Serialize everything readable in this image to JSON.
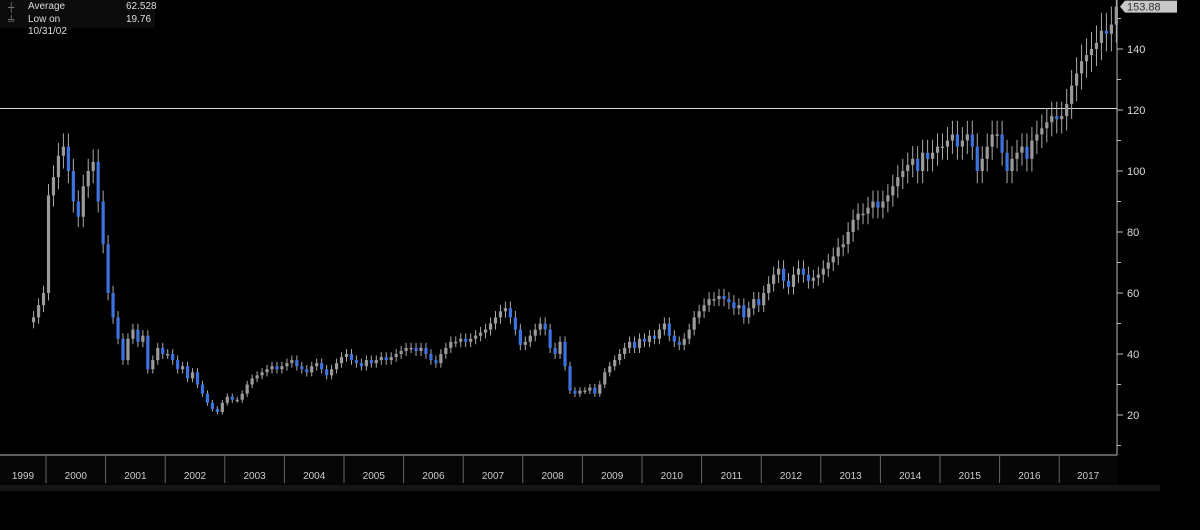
{
  "legend": {
    "average_label": "Average",
    "average_value": "62.528",
    "low_label": "Low on 10/31/02",
    "low_value": "19.76"
  },
  "last_price_label": "153.88",
  "colors": {
    "up": "#9a9a9a",
    "down": "#3b73e0",
    "axis": "#bbbbbb",
    "hline": "#d8d8d8",
    "background": "#000000"
  },
  "chart_data": {
    "type": "candlestick",
    "frequency": "monthly",
    "start": "1999-10",
    "close": [
      52,
      56,
      60,
      92,
      98,
      105,
      108,
      100,
      90,
      85,
      95,
      100,
      103,
      90,
      76,
      60,
      52,
      45,
      38,
      45,
      48,
      44,
      46,
      35,
      38,
      42,
      40,
      40,
      38,
      35,
      36,
      32,
      34,
      30,
      27,
      24,
      22,
      21,
      24,
      26,
      25,
      25,
      27,
      30,
      32,
      33,
      34,
      35,
      36,
      35,
      36,
      37,
      38,
      36,
      35,
      34,
      36,
      37,
      35,
      33,
      35,
      37,
      39,
      40,
      38,
      37,
      36,
      38,
      37,
      38,
      39,
      38,
      39,
      40,
      41,
      42,
      42,
      41,
      42,
      40,
      38,
      37,
      40,
      42,
      44,
      44,
      45,
      44,
      45,
      46,
      47,
      48,
      50,
      52,
      54,
      55,
      52,
      48,
      43,
      44,
      46,
      48,
      50,
      48,
      42,
      40,
      44,
      36,
      28,
      27,
      28,
      28,
      29,
      27,
      30,
      34,
      36,
      38,
      40,
      42,
      44,
      42,
      45,
      44,
      46,
      45,
      48,
      50,
      46,
      44,
      43,
      45,
      48,
      52,
      54,
      56,
      58,
      58,
      59,
      58,
      57,
      55,
      56,
      52,
      55,
      58,
      56,
      60,
      63,
      66,
      68,
      64,
      62,
      66,
      68,
      66,
      64,
      65,
      66,
      68,
      70,
      72,
      75,
      76,
      80,
      84,
      86,
      86,
      88,
      90,
      88,
      90,
      92,
      95,
      98,
      100,
      102,
      104,
      100,
      106,
      104,
      106,
      108,
      108,
      110,
      112,
      108,
      110,
      112,
      108,
      100,
      104,
      108,
      112,
      112,
      106,
      100,
      104,
      106,
      108,
      104,
      110,
      112,
      114,
      116,
      118,
      117,
      118,
      122,
      128,
      132,
      136,
      138,
      140,
      142,
      146,
      145,
      148,
      153.88
    ],
    "highlight_line": 120.5,
    "y_ticks": [
      20,
      40,
      60,
      80,
      100,
      120,
      140
    ],
    "x_labels": [
      "1999",
      "2000",
      "2001",
      "2002",
      "2003",
      "2004",
      "2005",
      "2006",
      "2007",
      "2008",
      "2009",
      "2010",
      "2011",
      "2012",
      "2013",
      "2014",
      "2015",
      "2016",
      "2017"
    ],
    "ylim": [
      8,
      156
    ],
    "axis_side": "right"
  }
}
